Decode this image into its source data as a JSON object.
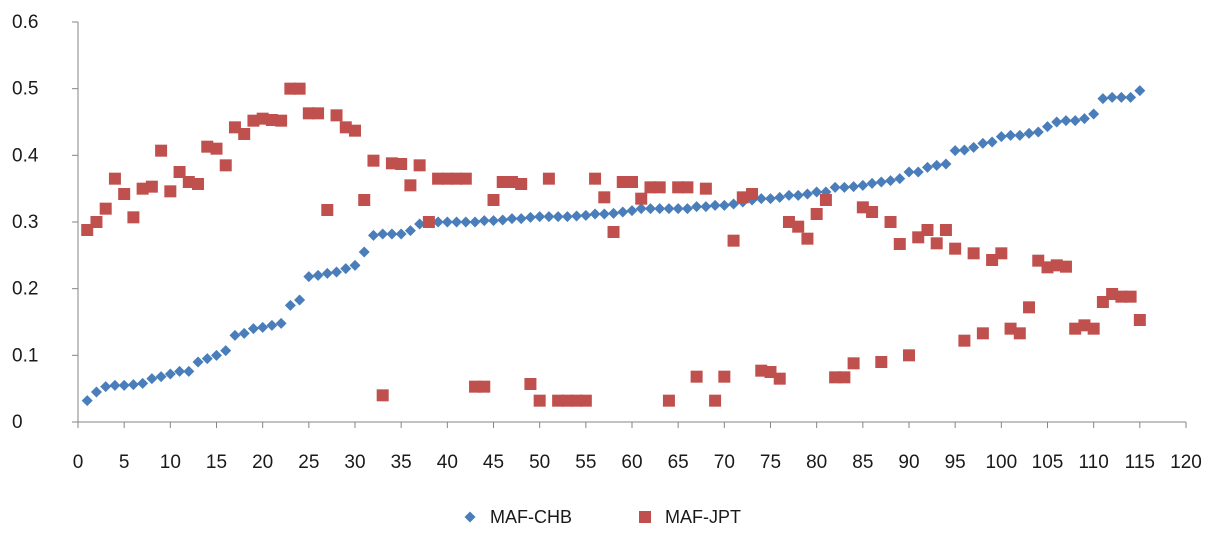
{
  "chart_data": {
    "type": "scatter",
    "title": "",
    "xlabel": "",
    "ylabel": "",
    "xlim": [
      0,
      120
    ],
    "ylim": [
      0,
      0.6
    ],
    "x_ticks": [
      "0",
      "5",
      "10",
      "15",
      "20",
      "25",
      "30",
      "35",
      "40",
      "45",
      "50",
      "55",
      "60",
      "65",
      "70",
      "75",
      "80",
      "85",
      "90",
      "95",
      "100",
      "105",
      "110",
      "115",
      "120"
    ],
    "y_ticks": [
      "0",
      "0.1",
      "0.2",
      "0.3",
      "0.4",
      "0.5",
      "0.6"
    ],
    "grid": false,
    "legend_position": "bottom",
    "series": [
      {
        "name": "MAF-CHB",
        "color": "#4a7ebb",
        "marker": "diamond",
        "x": [
          1,
          2,
          3,
          4,
          5,
          6,
          7,
          8,
          9,
          10,
          11,
          12,
          13,
          14,
          15,
          16,
          17,
          18,
          19,
          20,
          21,
          22,
          23,
          24,
          25,
          26,
          27,
          28,
          29,
          30,
          31,
          32,
          33,
          34,
          35,
          36,
          37,
          38,
          39,
          40,
          41,
          42,
          43,
          44,
          45,
          46,
          47,
          48,
          49,
          50,
          51,
          52,
          53,
          54,
          55,
          56,
          57,
          58,
          59,
          60,
          61,
          62,
          63,
          64,
          65,
          66,
          67,
          68,
          69,
          70,
          71,
          72,
          73,
          74,
          75,
          76,
          77,
          78,
          79,
          80,
          81,
          82,
          83,
          84,
          85,
          86,
          87,
          88,
          89,
          90,
          91,
          92,
          93,
          94,
          95,
          96,
          97,
          98,
          99,
          100,
          101,
          102,
          103,
          104,
          105,
          106,
          107,
          108,
          109,
          110,
          111,
          112,
          113,
          114,
          115
        ],
        "y": [
          0.032,
          0.045,
          0.053,
          0.055,
          0.055,
          0.056,
          0.058,
          0.065,
          0.068,
          0.072,
          0.076,
          0.076,
          0.09,
          0.095,
          0.1,
          0.107,
          0.13,
          0.133,
          0.14,
          0.142,
          0.145,
          0.148,
          0.175,
          0.183,
          0.218,
          0.22,
          0.223,
          0.225,
          0.23,
          0.235,
          0.255,
          0.28,
          0.282,
          0.282,
          0.282,
          0.287,
          0.297,
          0.3,
          0.3,
          0.3,
          0.3,
          0.3,
          0.3,
          0.302,
          0.302,
          0.303,
          0.305,
          0.305,
          0.307,
          0.308,
          0.308,
          0.308,
          0.308,
          0.309,
          0.31,
          0.312,
          0.312,
          0.313,
          0.315,
          0.317,
          0.32,
          0.32,
          0.32,
          0.32,
          0.32,
          0.32,
          0.323,
          0.323,
          0.325,
          0.325,
          0.327,
          0.33,
          0.333,
          0.335,
          0.335,
          0.337,
          0.34,
          0.34,
          0.342,
          0.345,
          0.345,
          0.352,
          0.352,
          0.353,
          0.355,
          0.358,
          0.36,
          0.362,
          0.365,
          0.375,
          0.375,
          0.382,
          0.385,
          0.387,
          0.407,
          0.408,
          0.412,
          0.418,
          0.42,
          0.428,
          0.43,
          0.43,
          0.433,
          0.435,
          0.443,
          0.45,
          0.452,
          0.452,
          0.455,
          0.462,
          0.485,
          0.487,
          0.487,
          0.487,
          0.497
        ]
      },
      {
        "name": "MAF-JPT",
        "color": "#c0504d",
        "marker": "square",
        "x": [
          1,
          2,
          3,
          4,
          5,
          6,
          7,
          8,
          9,
          10,
          11,
          12,
          13,
          14,
          15,
          16,
          17,
          18,
          19,
          20,
          21,
          22,
          23,
          24,
          25,
          26,
          27,
          28,
          29,
          30,
          31,
          32,
          33,
          34,
          35,
          36,
          37,
          38,
          39,
          40,
          41,
          42,
          43,
          44,
          45,
          46,
          47,
          48,
          49,
          50,
          51,
          52,
          53,
          54,
          55,
          56,
          57,
          58,
          59,
          60,
          61,
          62,
          63,
          64,
          65,
          66,
          67,
          68,
          69,
          70,
          71,
          72,
          73,
          74,
          75,
          76,
          77,
          78,
          79,
          80,
          81,
          82,
          83,
          84,
          85,
          86,
          87,
          88,
          89,
          90,
          91,
          92,
          93,
          94,
          95,
          96,
          97,
          98,
          99,
          100,
          101,
          102,
          103,
          104,
          105,
          106,
          107,
          108,
          109,
          110,
          111,
          112,
          113,
          114,
          115
        ],
        "y": [
          0.288,
          0.3,
          0.32,
          0.365,
          0.342,
          0.307,
          0.35,
          0.353,
          0.407,
          0.346,
          0.375,
          0.36,
          0.357,
          0.413,
          0.41,
          0.385,
          0.442,
          0.432,
          0.452,
          0.455,
          0.453,
          0.452,
          0.5,
          0.5,
          0.463,
          0.463,
          0.318,
          0.46,
          0.442,
          0.437,
          0.333,
          0.392,
          0.04,
          0.388,
          0.387,
          0.355,
          0.385,
          0.3,
          0.365,
          0.365,
          0.365,
          0.365,
          0.053,
          0.053,
          0.333,
          0.36,
          0.36,
          0.357,
          0.057,
          0.032,
          0.365,
          0.032,
          0.032,
          0.032,
          0.032,
          0.365,
          0.337,
          0.285,
          0.36,
          0.36,
          0.335,
          0.352,
          0.352,
          0.032,
          0.352,
          0.352,
          0.068,
          0.35,
          0.032,
          0.068,
          0.272,
          0.337,
          0.342,
          0.077,
          0.075,
          0.065,
          0.3,
          0.293,
          0.275,
          0.312,
          0.333,
          0.067,
          0.067,
          0.088,
          0.322,
          0.315,
          0.09,
          0.3,
          0.267,
          0.1,
          0.277,
          0.288,
          0.268,
          0.288,
          0.26,
          0.122,
          0.253,
          0.133,
          0.243,
          0.253,
          0.14,
          0.133,
          0.172,
          0.242,
          0.232,
          0.235,
          0.233,
          0.14,
          0.145,
          0.14,
          0.18,
          0.192,
          0.188,
          0.188,
          0.153
        ]
      }
    ]
  }
}
